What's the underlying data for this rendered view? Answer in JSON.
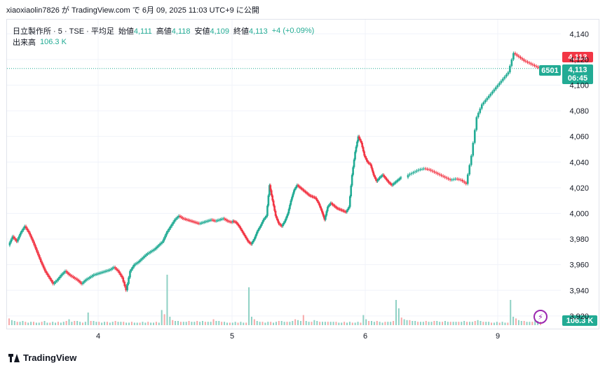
{
  "header": {
    "published_line": "xiaoxiaolin7826 が TradingView.com で 6月 09, 2025 11:03 UTC+9 に公開"
  },
  "legend": {
    "symbol": "日立製作所 · 5 · TSE · 平均足",
    "open_label": "始値",
    "open": "4,111",
    "high_label": "高値",
    "high": "4,118",
    "low_label": "安値",
    "low": "4,109",
    "close_label": "終値",
    "close": "4,113",
    "change": "+4 (+0.09%)",
    "volume_label": "出来高",
    "volume": "106.3 K"
  },
  "price_scale": {
    "ticks": [
      "4,140",
      "4,120",
      "4,100",
      "4,080",
      "4,060",
      "4,040",
      "4,020",
      "4,000",
      "3,980",
      "3,960",
      "3,940",
      "3,920"
    ]
  },
  "badges": {
    "high_price": "4,113",
    "symbol_code": "6501",
    "last_price": "4,113",
    "countdown": "06:45",
    "volume": "106.3 K"
  },
  "time_axis": {
    "labels": [
      "4",
      "5",
      "6",
      "9"
    ]
  },
  "footer": {
    "brand": "TradingView"
  },
  "colors": {
    "up": "#22ab94",
    "down": "#f23645",
    "grid": "#f0f3fa",
    "accent": "#9c27b0"
  },
  "chart_data": {
    "type": "candlestick",
    "title": "日立製作所 · 5 · TSE · 平均足",
    "ylim": [
      3915,
      4150
    ],
    "y_ticks": [
      3920,
      3940,
      3960,
      3980,
      4000,
      4020,
      4040,
      4060,
      4080,
      4100,
      4120,
      4140
    ],
    "x_day_labels": [
      "4",
      "5",
      "6",
      "9"
    ],
    "last_price": 4113,
    "series": [
      {
        "name": "日立製作所",
        "values": [
          [
            3975,
            3982,
            3978,
            3985,
            3990,
            3985,
            3978,
            3970,
            3962,
            3955,
            3950,
            3945,
            3948,
            3952,
            3955,
            3952,
            3950,
            3948,
            3945,
            3948,
            3950,
            3952,
            3953,
            3954,
            3955,
            3956,
            3958,
            3955,
            3950,
            3940,
            3955,
            3960,
            3962,
            3965,
            3968,
            3970,
            3972,
            3975,
            3978,
            3985,
            3990,
            3995,
            3998,
            3996,
            3995,
            3994,
            3993,
            3992,
            3993,
            3994,
            3995,
            3994,
            3995,
            3996,
            3994,
            3993
          ],
          [
            3994,
            3993,
            3990,
            3986,
            3982,
            3978,
            3976,
            3980,
            3986,
            3990,
            3995,
            3998,
            4022,
            4010,
            3998,
            3992,
            3990,
            3994,
            4000,
            4010,
            4018,
            4022,
            4020,
            4018,
            4016,
            4014,
            4013,
            4012,
            4008,
            4002,
            3995,
            4005,
            4008,
            4006,
            4004,
            4003,
            4002,
            4001,
            4005,
            4030,
            4048,
            4060,
            4055,
            4045,
            4040,
            4038,
            4030,
            4025,
            4028,
            4030,
            4027,
            4024,
            4022,
            4024,
            4026,
            4028
          ],
          [
            4030,
            4032,
            4034,
            4035,
            4034,
            4032,
            4030,
            4028,
            4026,
            4027,
            4026,
            4023,
            4045,
            4075,
            4085,
            4090,
            4095,
            4100,
            4105,
            4110,
            4125,
            4122,
            4119,
            4117,
            4115,
            4113
          ]
        ]
      }
    ],
    "volume": [
      {
        "name": "出来高",
        "values_k": [
          8,
          6,
          5,
          4,
          4,
          5,
          4,
          3,
          4,
          4,
          3,
          3,
          4,
          5,
          3,
          3,
          4,
          3,
          4,
          3,
          4,
          5,
          7,
          4,
          5,
          5,
          4,
          3,
          4,
          15,
          5,
          5,
          4,
          4,
          3,
          4,
          4,
          3,
          4,
          5,
          4,
          4,
          4,
          3,
          3,
          4,
          3,
          3,
          3,
          4,
          3,
          4,
          3,
          3,
          4,
          3,
          18,
          13,
          60,
          10,
          6,
          5,
          5,
          4,
          4,
          4,
          5,
          4,
          4,
          5,
          4,
          5,
          4,
          4,
          4,
          7,
          5,
          5,
          4,
          4,
          3,
          3,
          3,
          4,
          3,
          4,
          3,
          3,
          45,
          10,
          7,
          5,
          4,
          4,
          3,
          4,
          4,
          3,
          4,
          5,
          5,
          4,
          4,
          4,
          5,
          7,
          6,
          5,
          12,
          5,
          4,
          4,
          6,
          5,
          4,
          4,
          4,
          4,
          4,
          4,
          4,
          3,
          3,
          4,
          3,
          4,
          3,
          3,
          4,
          3,
          12,
          7,
          5,
          5,
          4,
          5,
          4,
          3,
          4,
          4,
          4,
          5,
          30,
          20,
          9,
          7,
          6,
          6,
          5,
          5,
          4,
          4,
          4,
          5,
          4,
          4,
          5,
          5,
          4,
          4,
          5,
          4,
          4,
          4,
          4,
          4,
          4,
          5,
          4,
          4,
          4,
          5,
          6,
          5,
          4,
          4,
          4,
          3,
          3,
          4,
          3,
          4,
          3,
          3,
          30,
          10,
          8,
          6,
          5,
          5,
          4,
          4,
          4,
          6,
          5,
          4
        ]
      }
    ]
  }
}
